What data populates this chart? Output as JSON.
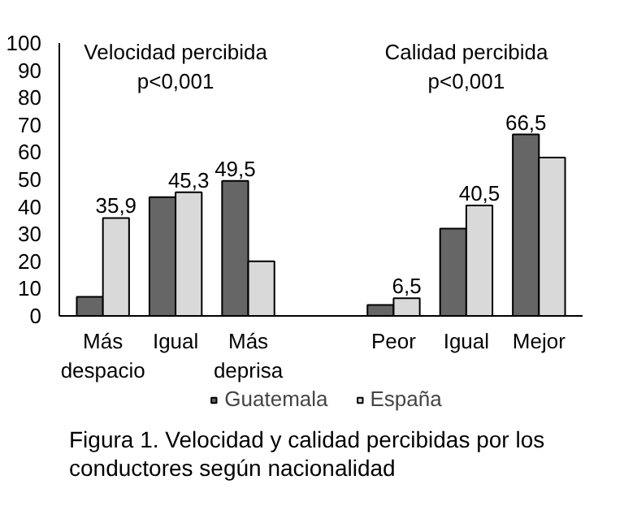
{
  "chart_data": {
    "type": "bar",
    "title": "Figura 1. Velocidad y calidad percibidas por los conductores según nacionalidad",
    "categories": [
      "Más despacio",
      "Igual",
      "Más deprisa",
      null,
      "Peor",
      "Igual",
      "Mejor"
    ],
    "series": [
      {
        "name": "Guatemala",
        "color": "#666666",
        "values": [
          7,
          43.5,
          49.5,
          null,
          4,
          32,
          66.5
        ],
        "value_labels": [
          null,
          null,
          "49,5",
          null,
          null,
          null,
          "66,5"
        ]
      },
      {
        "name": "España",
        "color": "#d9d9d9",
        "values": [
          35.9,
          45.3,
          20,
          null,
          6.5,
          40.5,
          58
        ],
        "value_labels": [
          "35,9",
          "45,3",
          null,
          null,
          "6,5",
          "40,5",
          null
        ]
      }
    ],
    "annotations": [
      "Velocidad percibida\np<0,001",
      "Calidad percibida\np<0,001"
    ],
    "ylim": [
      0,
      100
    ],
    "yticks": [
      0,
      10,
      20,
      30,
      40,
      50,
      60,
      70,
      80,
      90,
      100
    ],
    "grid": false,
    "legend": "bottom"
  }
}
